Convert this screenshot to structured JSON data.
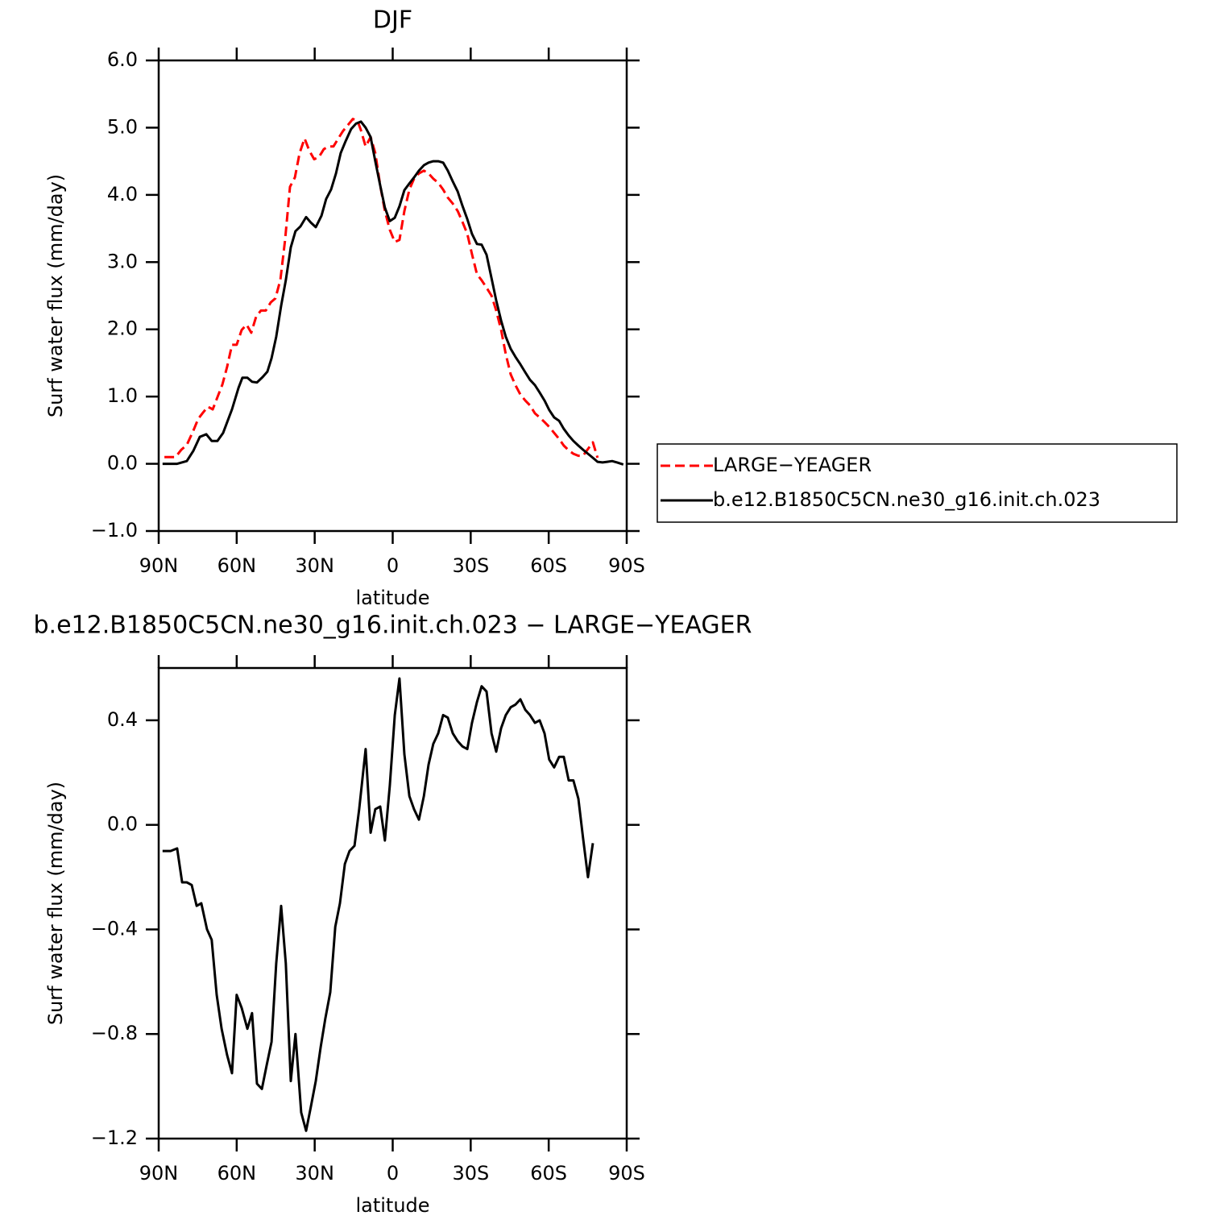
{
  "chart_data": [
    {
      "type": "line",
      "title": "DJF",
      "xlabel": "latitude",
      "ylabel": "Surf water flux (mm/day)",
      "xlim": [
        90,
        -90
      ],
      "xticks": [
        {
          "value": 90,
          "label": "90N"
        },
        {
          "value": 60,
          "label": "60N"
        },
        {
          "value": 30,
          "label": "30N"
        },
        0,
        {
          "value": -30,
          "label": "30S"
        },
        {
          "value": -60,
          "label": "60S"
        },
        {
          "value": -90,
          "label": "90S"
        }
      ],
      "ylim": [
        -1,
        6
      ],
      "yticks": [
        {
          "value": -1,
          "label": "−1.0"
        },
        {
          "value": 0,
          "label": "0.0"
        },
        {
          "value": 1,
          "label": "1.0"
        },
        {
          "value": 2,
          "label": "2.0"
        },
        {
          "value": 3,
          "label": "3.0"
        },
        {
          "value": 4,
          "label": "4.0"
        },
        {
          "value": 5,
          "label": "5.0"
        },
        {
          "value": 6,
          "label": "6.0"
        }
      ],
      "legend": "right",
      "series": [
        {
          "name": "LARGE−YEAGER",
          "color": "#ff0000",
          "linestyle": "dashed",
          "x": [
            87.8,
            83.5,
            81.3,
            79.2,
            76.7,
            74.8,
            73.0,
            71.1,
            69.2,
            67.4,
            65.5,
            63.7,
            61.8,
            60.0,
            58.1,
            56.2,
            54.4,
            52.5,
            50.7,
            48.8,
            46.9,
            45.1,
            43.2,
            41.4,
            39.5,
            37.6,
            35.8,
            33.9,
            32.1,
            30.2,
            28.4,
            26.5,
            24.6,
            22.8,
            20.9,
            19.1,
            17.2,
            15.3,
            13.5,
            12.2,
            10.4,
            8.5,
            6.7,
            4.8,
            3.0,
            1.1,
            -0.8,
            -2.6,
            -4.5,
            -6.4,
            -8.2,
            -10.1,
            -12.0,
            -13.8,
            -15.6,
            -17.5,
            -19.4,
            -21.2,
            -23.1,
            -25.0,
            -26.8,
            -28.7,
            -30.5,
            -32.4,
            -34.2,
            -36.1,
            -38.0,
            -39.8,
            -41.7,
            -43.5,
            -45.4,
            -47.2,
            -49.1,
            -51.0,
            -52.8,
            -54.7,
            -56.5,
            -58.4,
            -60.2,
            -62.1,
            -64.0,
            -65.8,
            -67.7,
            -69.5,
            -71.4,
            -73.2,
            -75.1,
            -77.0,
            -78.8
          ],
          "values": [
            0.1,
            0.1,
            0.21,
            0.28,
            0.49,
            0.67,
            0.76,
            0.85,
            0.81,
            0.99,
            1.18,
            1.44,
            1.77,
            1.77,
            1.99,
            2.07,
            1.95,
            2.19,
            2.28,
            2.28,
            2.4,
            2.46,
            2.74,
            3.33,
            4.12,
            4.26,
            4.62,
            4.84,
            4.66,
            4.53,
            4.56,
            4.68,
            4.72,
            4.72,
            4.84,
            4.95,
            5.04,
            5.13,
            5.1,
            4.96,
            4.72,
            4.86,
            4.62,
            4.14,
            3.76,
            3.48,
            3.3,
            3.33,
            3.76,
            4.08,
            4.24,
            4.32,
            4.36,
            4.32,
            4.24,
            4.18,
            4.08,
            3.96,
            3.87,
            3.76,
            3.6,
            3.42,
            3.12,
            2.82,
            2.73,
            2.62,
            2.5,
            2.28,
            1.99,
            1.63,
            1.33,
            1.17,
            1.03,
            0.94,
            0.87,
            0.75,
            0.69,
            0.62,
            0.55,
            0.46,
            0.37,
            0.27,
            0.2,
            0.15,
            0.12,
            0.12,
            0.22,
            0.32,
            0.09
          ]
        },
        {
          "name": "b.e12.B1850C5CN.ne30_g16.init.ch.023",
          "color": "#000000",
          "linestyle": "solid",
          "x": [
            88.5,
            82.9,
            79.2,
            76.7,
            74.2,
            71.7,
            69.6,
            67.4,
            65.2,
            61.8,
            59.3,
            57.8,
            55.9,
            54.1,
            52.2,
            50.0,
            48.2,
            46.6,
            44.8,
            42.9,
            41.1,
            39.2,
            37.4,
            35.5,
            33.3,
            31.5,
            29.6,
            27.4,
            25.6,
            23.7,
            21.8,
            20.0,
            18.1,
            16.0,
            14.1,
            12.2,
            10.4,
            8.5,
            6.7,
            4.8,
            3.0,
            1.1,
            -0.8,
            -2.6,
            -4.5,
            -6.4,
            -8.2,
            -10.1,
            -12.0,
            -13.8,
            -15.6,
            -17.5,
            -19.4,
            -21.2,
            -23.1,
            -25.0,
            -26.8,
            -28.7,
            -30.5,
            -32.4,
            -34.2,
            -36.1,
            -38.0,
            -39.8,
            -41.7,
            -43.5,
            -45.4,
            -47.2,
            -49.1,
            -51.0,
            -52.8,
            -54.7,
            -56.5,
            -58.4,
            -60.2,
            -62.1,
            -64.0,
            -65.8,
            -67.7,
            -69.5,
            -71.4,
            -73.2,
            -75.1,
            -77.0,
            -78.8,
            -80.7,
            -82.5,
            -84.4,
            -86.3,
            -88.7
          ],
          "values": [
            0.0,
            0.0,
            0.04,
            0.19,
            0.4,
            0.44,
            0.34,
            0.34,
            0.46,
            0.81,
            1.13,
            1.28,
            1.28,
            1.22,
            1.21,
            1.29,
            1.37,
            1.57,
            1.89,
            2.35,
            2.73,
            3.22,
            3.46,
            3.53,
            3.67,
            3.59,
            3.52,
            3.69,
            3.94,
            4.08,
            4.32,
            4.62,
            4.8,
            4.98,
            5.06,
            5.09,
            5.0,
            4.86,
            4.5,
            4.14,
            3.81,
            3.61,
            3.66,
            3.83,
            4.07,
            4.17,
            4.26,
            4.36,
            4.44,
            4.48,
            4.5,
            4.5,
            4.48,
            4.36,
            4.2,
            4.05,
            3.84,
            3.64,
            3.42,
            3.27,
            3.26,
            3.11,
            2.76,
            2.43,
            2.13,
            1.89,
            1.71,
            1.59,
            1.48,
            1.36,
            1.25,
            1.17,
            1.06,
            0.94,
            0.8,
            0.69,
            0.64,
            0.52,
            0.42,
            0.34,
            0.27,
            0.21,
            0.15,
            0.09,
            0.03,
            0.02,
            0.03,
            0.04,
            0.02,
            -0.01
          ]
        }
      ]
    },
    {
      "type": "line",
      "title": "b.e12.B1850C5CN.ne30_g16.init.ch.023 − LARGE−YEAGER",
      "xlabel": "latitude",
      "ylabel": "Surf water flux (mm/day)",
      "xlim": [
        90,
        -90
      ],
      "xticks": [
        {
          "value": 90,
          "label": "90N"
        },
        {
          "value": 60,
          "label": "60N"
        },
        {
          "value": 30,
          "label": "30N"
        },
        0,
        {
          "value": -30,
          "label": "30S"
        },
        {
          "value": -60,
          "label": "60S"
        },
        {
          "value": -90,
          "label": "90S"
        }
      ],
      "ylim": [
        -1.2,
        0.6
      ],
      "yticks": [
        {
          "value": -1.2,
          "label": "−1.2"
        },
        {
          "value": -0.8,
          "label": "−0.8"
        },
        {
          "value": -0.4,
          "label": "−0.4"
        },
        {
          "value": 0,
          "label": "0.0"
        },
        0.4
      ],
      "series": [
        {
          "color": "#000000",
          "linestyle": "solid",
          "x": [
            88.5,
            85.4,
            82.9,
            81.0,
            79.2,
            77.3,
            75.4,
            73.6,
            71.4,
            69.6,
            67.7,
            65.8,
            63.7,
            61.8,
            60.0,
            58.1,
            55.9,
            54.1,
            52.2,
            50.3,
            48.5,
            46.6,
            44.8,
            42.9,
            41.1,
            39.2,
            37.4,
            35.2,
            33.3,
            31.5,
            29.6,
            27.7,
            25.9,
            24.0,
            22.1,
            20.3,
            18.4,
            16.6,
            14.7,
            12.9,
            10.4,
            8.5,
            6.7,
            4.8,
            3.0,
            1.1,
            -0.8,
            -2.6,
            -4.5,
            -6.4,
            -8.2,
            -10.1,
            -12.0,
            -13.8,
            -15.6,
            -17.5,
            -19.4,
            -21.2,
            -23.1,
            -25.0,
            -26.8,
            -28.7,
            -30.5,
            -32.4,
            -34.2,
            -36.1,
            -38.0,
            -39.8,
            -41.7,
            -43.5,
            -45.4,
            -47.2,
            -49.1,
            -51.0,
            -52.8,
            -54.7,
            -56.5,
            -58.4,
            -60.2,
            -62.1,
            -64.0,
            -65.8,
            -67.7,
            -69.5,
            -71.4,
            -73.2,
            -75.1,
            -77.0
          ],
          "values": [
            -0.1,
            -0.1,
            -0.09,
            -0.22,
            -0.22,
            -0.23,
            -0.31,
            -0.3,
            -0.4,
            -0.44,
            -0.65,
            -0.78,
            -0.88,
            -0.95,
            -0.65,
            -0.7,
            -0.78,
            -0.72,
            -0.99,
            -1.01,
            -0.92,
            -0.83,
            -0.53,
            -0.31,
            -0.53,
            -0.98,
            -0.8,
            -1.1,
            -1.17,
            -1.08,
            -0.98,
            -0.85,
            -0.74,
            -0.64,
            -0.39,
            -0.3,
            -0.15,
            -0.1,
            -0.08,
            0.06,
            0.29,
            -0.03,
            0.06,
            0.07,
            -0.06,
            0.15,
            0.42,
            0.56,
            0.27,
            0.11,
            0.06,
            0.02,
            0.11,
            0.23,
            0.31,
            0.35,
            0.42,
            0.41,
            0.35,
            0.32,
            0.3,
            0.29,
            0.39,
            0.47,
            0.53,
            0.51,
            0.35,
            0.28,
            0.37,
            0.42,
            0.45,
            0.46,
            0.48,
            0.44,
            0.42,
            0.39,
            0.4,
            0.35,
            0.25,
            0.22,
            0.26,
            0.26,
            0.17,
            0.17,
            0.1,
            -0.05,
            -0.2,
            -0.07
          ]
        }
      ]
    }
  ]
}
